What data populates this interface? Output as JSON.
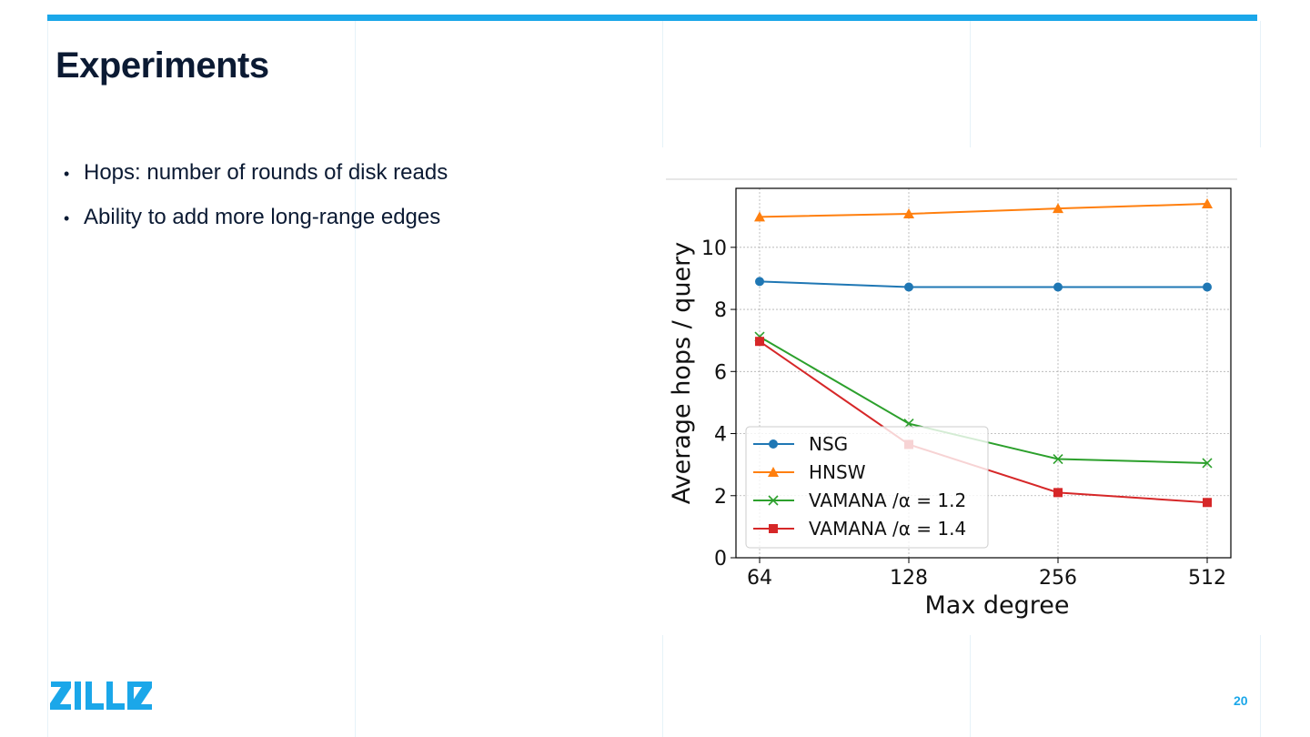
{
  "slide": {
    "title": "Experiments",
    "bullets": [
      "Hops: number of rounds of disk reads",
      "Ability to add more long-range edges"
    ],
    "page_number": "20",
    "logo_text": "ZILLIZ"
  },
  "colors": {
    "accent": "#1ba7e9",
    "title_text": "#0b1a33"
  },
  "chart_data": {
    "type": "line",
    "title": "",
    "xlabel": "Max degree",
    "ylabel": "Average hops / query",
    "x": [
      64,
      128,
      256,
      512
    ],
    "x_scale": "log2",
    "xtick_labels": [
      "64",
      "128",
      "256",
      "512"
    ],
    "ytick_labels": [
      "0",
      "2",
      "4",
      "6",
      "8",
      "10"
    ],
    "yticks": [
      0,
      2,
      4,
      6,
      8,
      10
    ],
    "ylim": [
      0,
      11.9
    ],
    "grid": true,
    "legend_position": "lower-left",
    "series": [
      {
        "name": "NSG",
        "marker": "circle",
        "color": "#1f77b4",
        "values": [
          8.9,
          8.72,
          8.72,
          8.72
        ]
      },
      {
        "name": "HNSW",
        "marker": "triangle",
        "color": "#ff7f0e",
        "values": [
          10.98,
          11.08,
          11.25,
          11.4
        ]
      },
      {
        "name": "VAMANA /α = 1.2",
        "marker": "x",
        "color": "#2ca02c",
        "values": [
          7.12,
          4.32,
          3.18,
          3.05
        ]
      },
      {
        "name": "VAMANA /α = 1.4",
        "marker": "square",
        "color": "#d62728",
        "values": [
          6.97,
          3.65,
          2.1,
          1.78
        ]
      }
    ]
  }
}
